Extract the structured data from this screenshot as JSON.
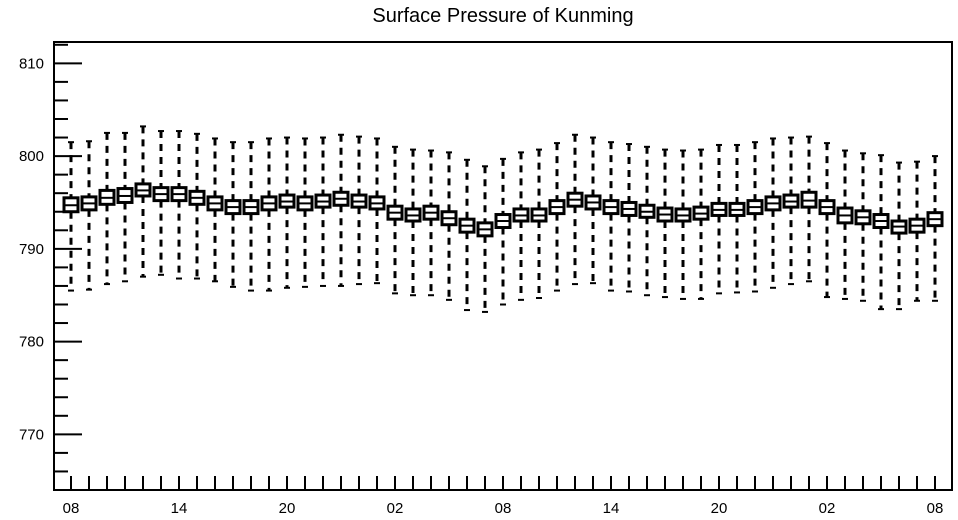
{
  "chart_data": {
    "type": "box",
    "title": "Surface Pressure of Kunming",
    "xlabel": "",
    "ylabel": "",
    "ylim": [
      764,
      812.3
    ],
    "grid": false,
    "y_ticks": [
      770,
      780,
      790,
      800,
      810
    ],
    "y_tick_labels": [
      "770",
      "780",
      "790",
      "800",
      "810"
    ],
    "x_tick_labels": [
      "08",
      "14",
      "20",
      "02",
      "08",
      "14",
      "20",
      "02",
      "08"
    ],
    "x_tick_indices": [
      0,
      6,
      12,
      18,
      24,
      30,
      36,
      42,
      48
    ],
    "series": [
      {
        "whisker_low": [
          785.5,
          785.6,
          786.2,
          786.5,
          787.0,
          787.2,
          786.8,
          786.8,
          786.5,
          785.9,
          785.5,
          785.5,
          785.8,
          785.9,
          786.0,
          786.0,
          786.2,
          786.3,
          785.2,
          785.0,
          785.0,
          784.5,
          783.4,
          783.2,
          784.0,
          784.5,
          784.7,
          785.5,
          786.2,
          786.3,
          785.5,
          785.4,
          785.0,
          784.8,
          784.6,
          784.6,
          785.2,
          785.3,
          785.4,
          785.8,
          786.2,
          786.5,
          784.8,
          784.6,
          784.4,
          783.5,
          783.5,
          784.4,
          784.4
        ],
        "q1": [
          794.0,
          794.2,
          794.8,
          795.0,
          795.7,
          795.2,
          795.2,
          794.8,
          794.2,
          793.8,
          793.8,
          794.2,
          794.5,
          794.2,
          794.5,
          794.7,
          794.5,
          794.3,
          793.2,
          793.0,
          793.2,
          792.6,
          791.8,
          791.4,
          792.3,
          793.0,
          793.0,
          793.8,
          794.6,
          794.3,
          793.8,
          793.6,
          793.4,
          793.0,
          793.0,
          793.2,
          793.6,
          793.6,
          793.8,
          794.2,
          794.5,
          794.5,
          793.8,
          792.8,
          792.7,
          792.3,
          791.7,
          791.8,
          792.5
        ],
        "median": [
          794.7,
          794.9,
          795.5,
          795.7,
          796.3,
          795.9,
          795.9,
          795.5,
          794.9,
          794.5,
          794.5,
          794.9,
          795.1,
          794.9,
          795.1,
          795.4,
          795.1,
          794.9,
          793.9,
          793.6,
          793.9,
          793.3,
          792.5,
          792.1,
          793.0,
          793.6,
          793.6,
          794.5,
          795.3,
          795.0,
          794.5,
          794.3,
          794.0,
          793.7,
          793.6,
          793.8,
          794.2,
          794.2,
          794.5,
          794.9,
          795.1,
          795.2,
          794.5,
          793.6,
          793.4,
          793.0,
          792.4,
          792.5,
          793.2
        ],
        "q3": [
          795.5,
          795.6,
          796.3,
          796.5,
          797.0,
          796.6,
          796.6,
          796.2,
          795.6,
          795.2,
          795.2,
          795.6,
          795.8,
          795.6,
          795.8,
          796.1,
          795.8,
          795.6,
          794.6,
          794.3,
          794.6,
          794.0,
          793.2,
          792.8,
          793.7,
          794.3,
          794.3,
          795.2,
          796.0,
          795.7,
          795.2,
          795.0,
          794.7,
          794.4,
          794.3,
          794.5,
          794.9,
          794.9,
          795.2,
          795.6,
          795.8,
          796.1,
          795.2,
          794.4,
          794.1,
          793.7,
          793.0,
          793.2,
          793.9
        ],
        "whisker_high": [
          801.5,
          801.6,
          802.5,
          802.5,
          803.2,
          802.7,
          802.7,
          802.4,
          801.9,
          801.5,
          801.5,
          801.9,
          802.0,
          801.9,
          802.0,
          802.3,
          802.1,
          801.9,
          801.0,
          800.7,
          800.6,
          800.4,
          799.6,
          798.9,
          799.7,
          800.4,
          800.7,
          801.4,
          802.3,
          802.0,
          801.5,
          801.3,
          801.0,
          800.7,
          800.6,
          800.7,
          801.2,
          801.2,
          801.5,
          801.9,
          802.0,
          802.1,
          801.4,
          800.6,
          800.3,
          800.1,
          799.3,
          799.4,
          800.0
        ]
      }
    ]
  }
}
